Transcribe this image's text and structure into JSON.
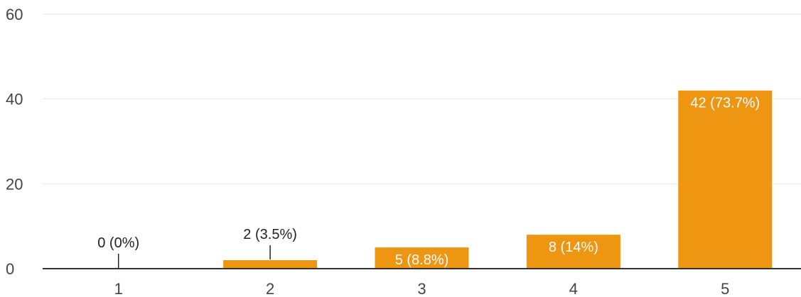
{
  "chart_data": {
    "type": "bar",
    "categories": [
      "1",
      "2",
      "3",
      "4",
      "5"
    ],
    "values": [
      0,
      2,
      5,
      8,
      42
    ],
    "data_labels": [
      "0 (0%)",
      "2 (3.5%)",
      "5 (8.8%)",
      "8 (14%)",
      "42 (73.7%)"
    ],
    "y_ticks": [
      "0",
      "20",
      "40",
      "60"
    ],
    "ylim": [
      0,
      60
    ],
    "grid": true,
    "legend": "none",
    "title": "",
    "xlabel": "",
    "ylabel": "",
    "colors": {
      "bar": "#EE9512",
      "label_inside": "#ffffff",
      "label_outside": "#222222",
      "axis": "#333333",
      "grid": "#e6e6e6"
    }
  }
}
